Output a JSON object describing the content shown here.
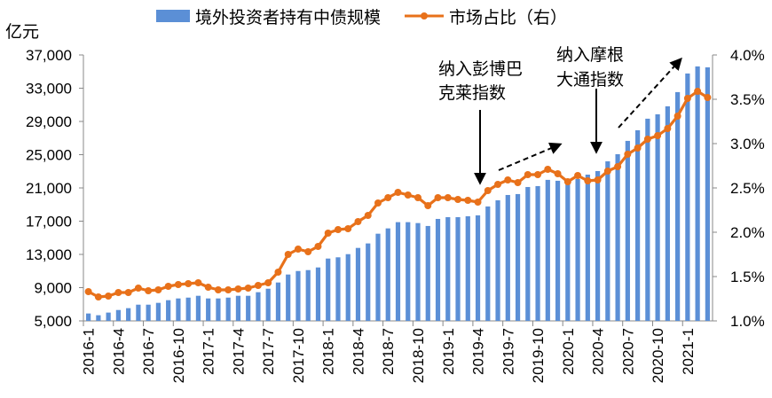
{
  "chart_data": {
    "type": "bar+line",
    "unit_left": "亿元",
    "x": [
      "2016-1",
      "2016-2",
      "2016-3",
      "2016-4",
      "2016-5",
      "2016-6",
      "2016-7",
      "2016-8",
      "2016-9",
      "2016-10",
      "2016-11",
      "2016-12",
      "2017-1",
      "2017-2",
      "2017-3",
      "2017-4",
      "2017-5",
      "2017-6",
      "2017-7",
      "2017-8",
      "2017-9",
      "2017-10",
      "2017-11",
      "2017-12",
      "2018-1",
      "2018-2",
      "2018-3",
      "2018-4",
      "2018-5",
      "2018-6",
      "2018-7",
      "2018-8",
      "2018-9",
      "2018-10",
      "2018-11",
      "2018-12",
      "2019-1",
      "2019-2",
      "2019-3",
      "2019-4",
      "2019-5",
      "2019-6",
      "2019-7",
      "2019-8",
      "2019-9",
      "2019-10",
      "2019-11",
      "2019-12",
      "2020-1",
      "2020-2",
      "2020-3",
      "2020-4",
      "2020-5",
      "2020-6",
      "2020-7",
      "2020-8",
      "2020-9",
      "2020-10",
      "2020-11",
      "2020-12",
      "2021-1",
      "2021-2",
      "2021-3"
    ],
    "x_tick_labels": [
      "2016-1",
      "2016-4",
      "2016-7",
      "2016-10",
      "2017-1",
      "2017-4",
      "2017-7",
      "2017-10",
      "2018-1",
      "2018-4",
      "2018-7",
      "2018-10",
      "2019-1",
      "2019-4",
      "2019-7",
      "2019-10",
      "2020-1",
      "2020-4",
      "2020-7",
      "2020-10",
      "2021-1"
    ],
    "series": [
      {
        "name": "境外投资者持有中债规模",
        "type": "bar",
        "axis": "left",
        "color": "#5b8fd6",
        "values": [
          5890,
          5680,
          6000,
          6310,
          6530,
          6950,
          6950,
          7170,
          7490,
          7700,
          7800,
          8020,
          7700,
          7700,
          7800,
          8020,
          8020,
          8450,
          8870,
          9620,
          10580,
          11000,
          11110,
          11430,
          12500,
          12650,
          13030,
          13780,
          14320,
          15490,
          16130,
          16880,
          16880,
          16770,
          16420,
          17270,
          17480,
          17480,
          17590,
          17700,
          18770,
          19510,
          20150,
          20260,
          21110,
          21220,
          21970,
          21860,
          21430,
          22070,
          22600,
          23030,
          24200,
          25060,
          26660,
          27940,
          29330,
          29860,
          30820,
          32530,
          34770,
          35620,
          35510
        ]
      },
      {
        "name": "市场占比（右）",
        "type": "line",
        "axis": "right",
        "color": "#e8711a",
        "values": [
          1.33,
          1.27,
          1.28,
          1.32,
          1.32,
          1.37,
          1.34,
          1.35,
          1.39,
          1.41,
          1.42,
          1.43,
          1.38,
          1.35,
          1.35,
          1.36,
          1.37,
          1.4,
          1.43,
          1.55,
          1.75,
          1.81,
          1.78,
          1.84,
          1.99,
          2.03,
          2.04,
          2.12,
          2.19,
          2.33,
          2.39,
          2.45,
          2.42,
          2.39,
          2.3,
          2.39,
          2.39,
          2.37,
          2.36,
          2.34,
          2.47,
          2.54,
          2.59,
          2.56,
          2.65,
          2.65,
          2.71,
          2.66,
          2.57,
          2.64,
          2.58,
          2.59,
          2.69,
          2.74,
          2.88,
          2.95,
          3.05,
          3.09,
          3.17,
          3.31,
          3.51,
          3.59,
          3.52
        ]
      }
    ],
    "y_left": {
      "range": [
        5000,
        37000
      ],
      "ticks": [
        "5,000",
        "9,000",
        "13,000",
        "17,000",
        "21,000",
        "25,000",
        "29,000",
        "33,000",
        "37,000"
      ]
    },
    "y_right": {
      "range": [
        1.0,
        4.0
      ],
      "ticks": [
        "1.0%",
        "1.5%",
        "2.0%",
        "2.5%",
        "3.0%",
        "3.5%",
        "4.0%"
      ]
    },
    "legend_position": "top",
    "grid": false,
    "annotations": [
      {
        "lines": [
          "纳入彭博巴",
          "克莱指数"
        ],
        "at": "2019-4"
      },
      {
        "lines": [
          "纳入摩根",
          "大通指数"
        ],
        "at": "2020-4"
      }
    ]
  }
}
